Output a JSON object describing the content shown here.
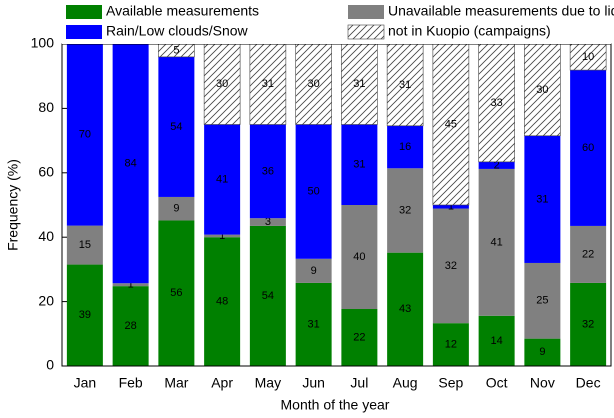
{
  "chart_data": {
    "type": "stacked_bar",
    "x_label": "Month of the year",
    "y_label": "Frequency (%)",
    "categories": [
      "Jan",
      "Feb",
      "Mar",
      "Apr",
      "May",
      "Jun",
      "Jul",
      "Aug",
      "Sep",
      "Oct",
      "Nov",
      "Dec"
    ],
    "series": [
      {
        "name": "Available measurements",
        "color": "#008000",
        "hatch": false,
        "values": [
          31.5,
          24.8,
          45.2,
          40,
          43.5,
          25.8,
          17.7,
          35.2,
          13.3,
          15.6,
          8.5,
          25.8
        ],
        "counts": [
          39,
          28,
          56,
          48,
          54,
          31,
          22,
          43,
          12,
          14,
          9,
          32
        ]
      },
      {
        "name": "Unavailable measurements due to lidar",
        "color": "#808080",
        "hatch": false,
        "values": [
          12.1,
          0.9,
          7.3,
          0.8,
          2.4,
          7.5,
          32.3,
          26.2,
          35.6,
          45.6,
          23.5,
          17.7
        ],
        "counts": [
          15,
          1,
          9,
          1,
          3,
          9,
          40,
          32,
          32,
          41,
          25,
          22
        ]
      },
      {
        "name": "Rain/Low clouds/Snow",
        "color": "#0000ff",
        "hatch": false,
        "values": [
          56.4,
          74.3,
          43.5,
          34.2,
          29.1,
          41.7,
          25,
          13.2,
          1.1,
          2.2,
          39.5,
          48.4
        ],
        "counts": [
          70,
          84,
          54,
          41,
          36,
          50,
          31,
          16,
          1,
          2,
          31,
          60
        ]
      },
      {
        "name": "not in Kuopio (campaigns)",
        "color": "#ffffff",
        "hatch": true,
        "values": [
          0,
          0,
          4,
          25,
          25,
          25,
          25,
          25.4,
          50,
          36.6,
          28.5,
          8.1
        ],
        "counts": [
          null,
          null,
          5,
          30,
          31,
          30,
          31,
          31,
          45,
          33,
          30,
          10
        ]
      }
    ],
    "legend_order": [
      0,
      2,
      1,
      3
    ],
    "ylim": [
      0,
      100
    ],
    "yticks": [
      0,
      20,
      40,
      60,
      80,
      100
    ]
  }
}
